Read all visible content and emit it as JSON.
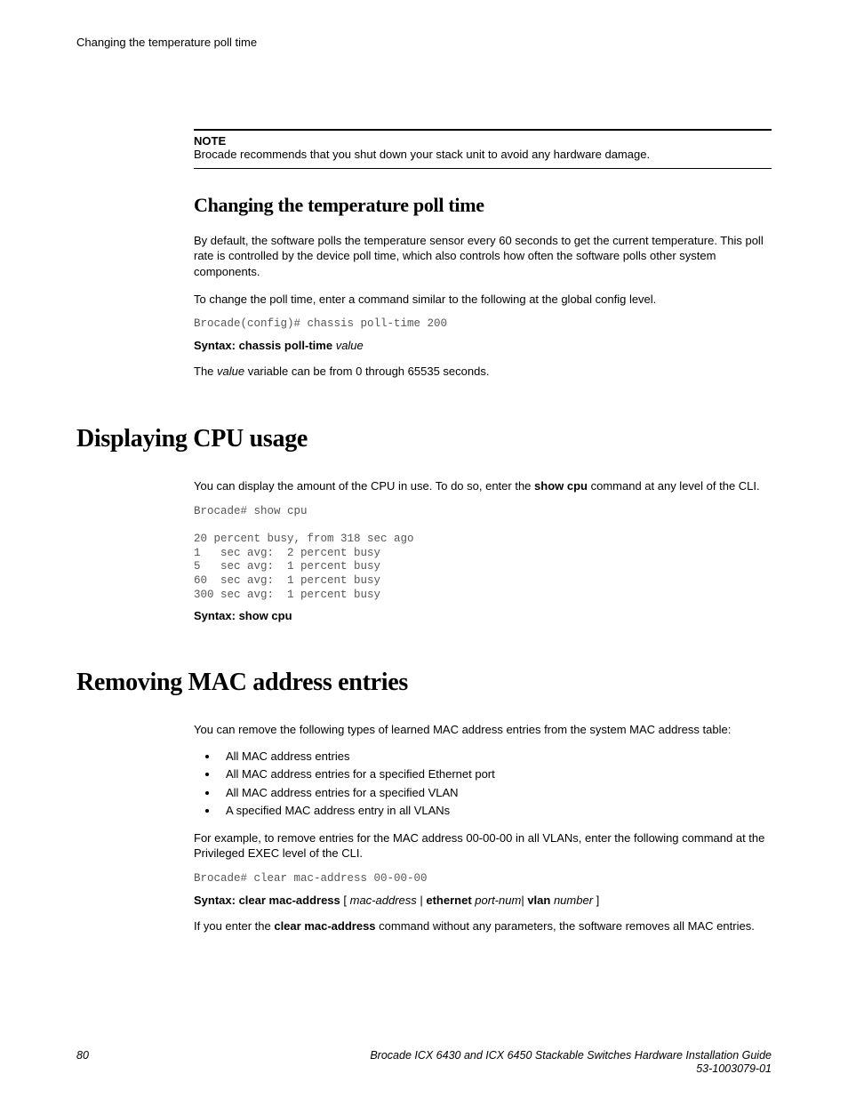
{
  "running_header": "Changing the temperature poll time",
  "note": {
    "label": "NOTE",
    "text": "Brocade recommends that you shut down your stack unit to avoid any hardware damage."
  },
  "section1": {
    "heading": "Changing the temperature poll time",
    "para1": "By default, the software polls the temperature sensor every 60 seconds to get the current temperature. This poll rate is controlled by the device poll time, which also controls how often the software polls other system components.",
    "para2": "To change the poll time, enter a command similar to the following at the global config level.",
    "code": "Brocade(config)# chassis poll-time 200",
    "syntax_prefix": "Syntax: chassis poll-time",
    "syntax_var": "value",
    "para3_pre": "The ",
    "para3_var": "value",
    "para3_post": " variable can be from 0 through 65535 seconds."
  },
  "section2": {
    "heading": "Displaying CPU usage",
    "para1_pre": "You can display the amount of the CPU in use. To do so, enter the ",
    "para1_cmd": "show cpu",
    "para1_post": " command at any level of the CLI.",
    "code": "Brocade# show cpu\n\n20 percent busy, from 318 sec ago\n1   sec avg:  2 percent busy\n5   sec avg:  1 percent busy\n60  sec avg:  1 percent busy\n300 sec avg:  1 percent busy",
    "syntax": "Syntax: show cpu"
  },
  "section3": {
    "heading": "Removing MAC address entries",
    "para1": "You can remove the following types of learned MAC address entries from the system MAC address table:",
    "bullets": [
      "All MAC address entries",
      "All MAC address entries for a specified Ethernet port",
      "All MAC address entries for a specified VLAN",
      "A specified MAC address entry in all VLANs"
    ],
    "para2": "For example, to remove entries for the MAC address 00-00-00 in all VLANs, enter the following command at the Privileged EXEC level of the CLI.",
    "code": "Brocade# clear mac-address 00-00-00",
    "syntax_bold1": "Syntax: clear mac-address",
    "syntax_br1": " [ ",
    "syntax_it1": "mac-address",
    "syntax_br2": " | ",
    "syntax_bold2": "ethernet",
    "syntax_sp1": " ",
    "syntax_it2": "port-num",
    "syntax_br3": "| ",
    "syntax_bold3": "vlan",
    "syntax_sp2": " ",
    "syntax_it3": "number",
    "syntax_br4": " ]",
    "para3_pre": "If you enter the ",
    "para3_cmd": "clear mac-address",
    "para3_post": " command without any parameters, the software removes all MAC entries."
  },
  "footer": {
    "page": "80",
    "title": "Brocade ICX 6430 and ICX 6450 Stackable Switches Hardware Installation Guide",
    "docnum": "53-1003079-01"
  }
}
